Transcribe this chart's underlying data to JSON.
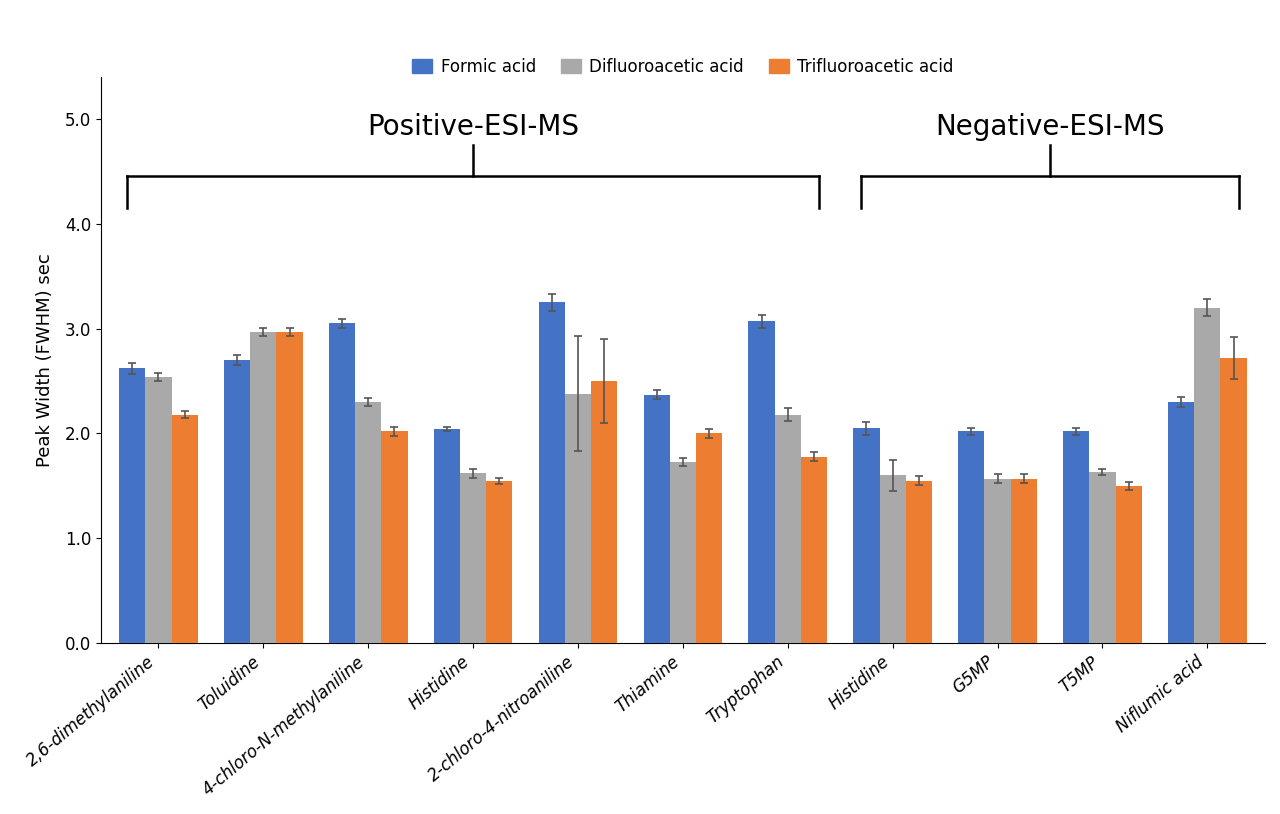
{
  "categories": [
    "2,6-dimethylaniline",
    "Toluidine",
    "4-chloro-N-methylaniline",
    "Histidine",
    "2-chloro-4-nitroaniline",
    "Thiamine",
    "Tryptophan",
    "Histidine",
    "G5MP",
    "T5MP",
    "Niflumic acid"
  ],
  "formic_acid": [
    2.62,
    2.7,
    3.05,
    2.04,
    3.25,
    2.37,
    3.07,
    2.05,
    2.02,
    2.02,
    2.3
  ],
  "difluoroacetic_acid": [
    2.54,
    2.97,
    2.3,
    1.62,
    2.38,
    1.73,
    2.18,
    1.6,
    1.57,
    1.63,
    3.2
  ],
  "trifluoroacetic_acid": [
    2.18,
    2.97,
    2.02,
    1.55,
    2.5,
    2.0,
    1.78,
    1.55,
    1.57,
    1.5,
    2.72
  ],
  "formic_acid_err": [
    0.05,
    0.05,
    0.04,
    0.02,
    0.08,
    0.04,
    0.06,
    0.06,
    0.03,
    0.03,
    0.05
  ],
  "difluoroacetic_acid_err": [
    0.04,
    0.04,
    0.04,
    0.04,
    0.55,
    0.04,
    0.06,
    0.15,
    0.04,
    0.03,
    0.08
  ],
  "trifluoroacetic_acid_err": [
    0.03,
    0.04,
    0.04,
    0.03,
    0.4,
    0.04,
    0.04,
    0.04,
    0.04,
    0.04,
    0.2
  ],
  "bar_colors": [
    "#4472C4",
    "#A9A9A9",
    "#ED7D31"
  ],
  "legend_labels": [
    "Formic acid",
    "Difluoroacetic acid",
    "Trifluoroacetic acid"
  ],
  "ylabel": "Peak Width (FWHM) sec",
  "ylim": [
    0.0,
    5.4
  ],
  "yticks": [
    0.0,
    1.0,
    2.0,
    3.0,
    4.0,
    5.0
  ],
  "ytick_labels": [
    "0.0",
    "1.0",
    "2.0",
    "3.0",
    "4.0",
    "5.0"
  ],
  "positive_esi_label": "Positive-ESI-MS",
  "negative_esi_label": "Negative-ESI-MS",
  "background_color": "#FFFFFF",
  "title_fontsize": 20,
  "axis_label_fontsize": 13,
  "tick_fontsize": 12,
  "legend_fontsize": 12,
  "bar_width": 0.25
}
